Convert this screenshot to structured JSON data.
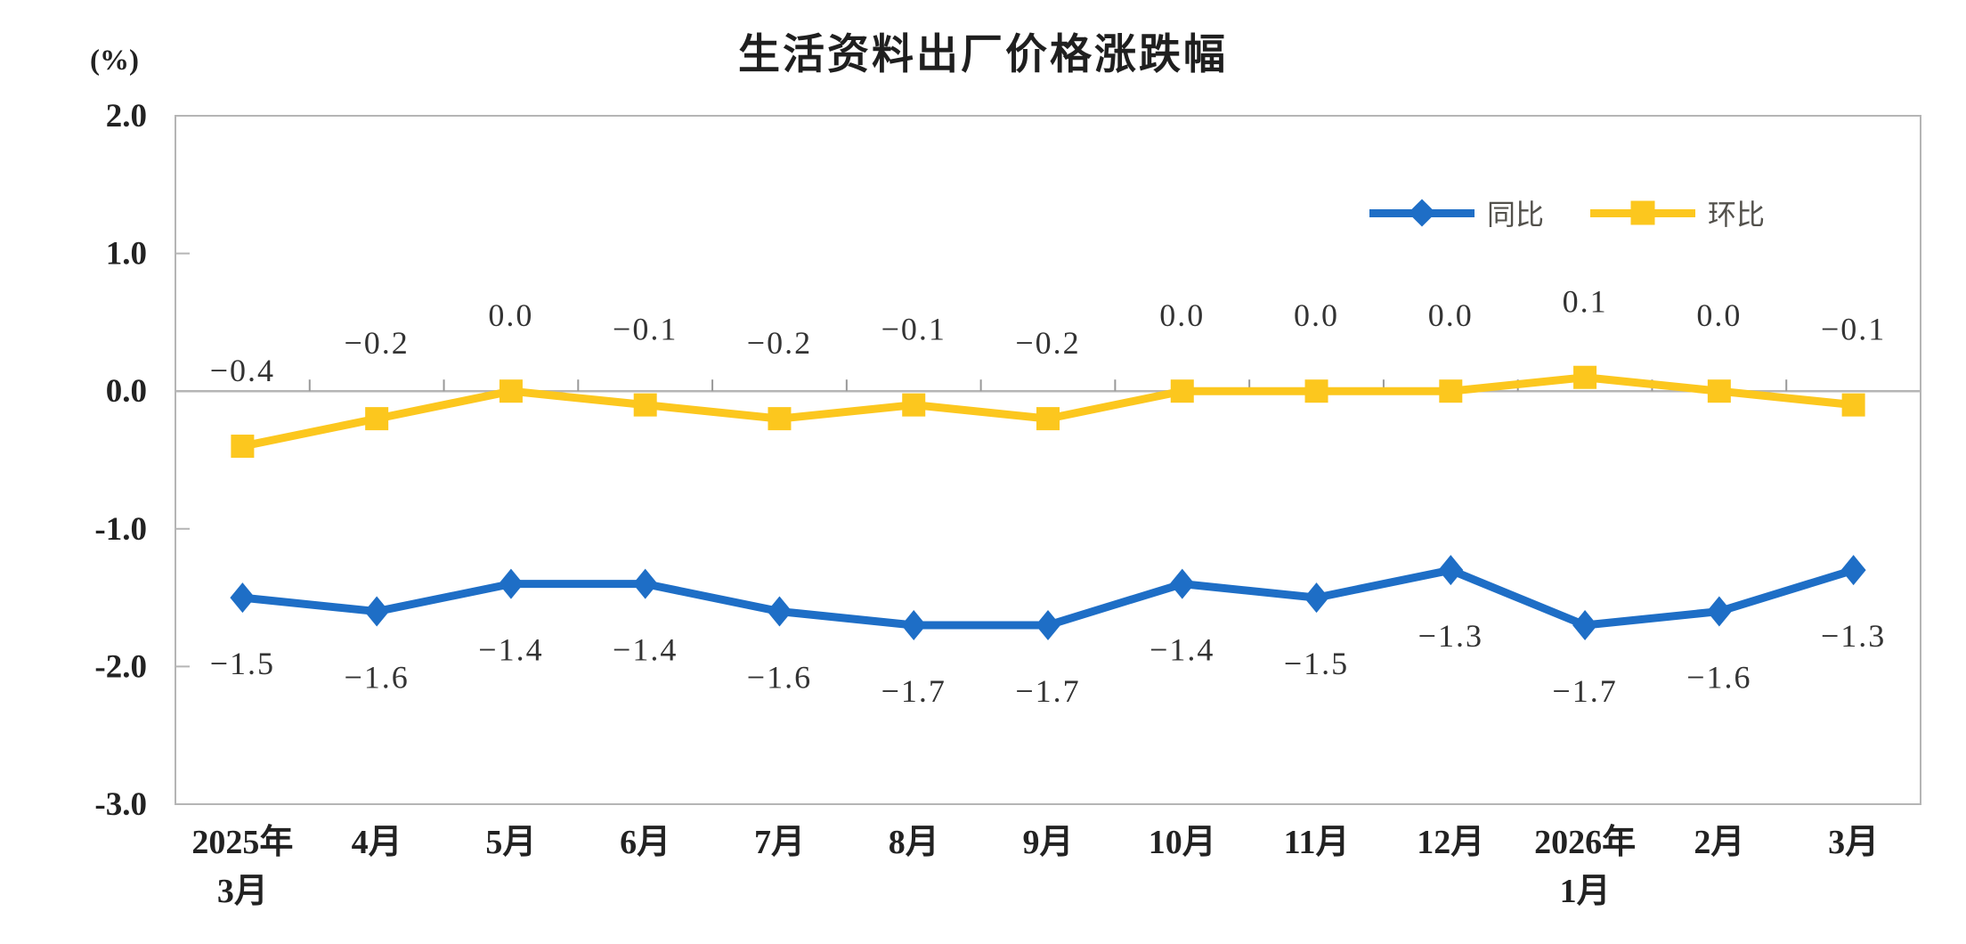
{
  "header": {
    "title": "生活资料出厂价格涨跌幅",
    "unit_label": "(%)"
  },
  "legend": {
    "position": "top-right",
    "items": [
      {
        "name": "同比",
        "color": "#1e6ec6",
        "marker": "diamond"
      },
      {
        "name": "环比",
        "color": "#fcc71e",
        "marker": "square"
      }
    ]
  },
  "chart_data": {
    "type": "line",
    "title": "生活资料出厂价格涨跌幅",
    "ylabel": "(%)",
    "ylim": [
      -3.0,
      2.0
    ],
    "yticks": [
      2.0,
      1.0,
      0.0,
      -1.0,
      -2.0,
      -3.0
    ],
    "inner_ytick_values": [
      1.0,
      -1.0,
      -2.0
    ],
    "grid": "zero-line-only",
    "legend_position": "top-right",
    "categories": [
      "2025年\n3月",
      "4月",
      "5月",
      "6月",
      "7月",
      "8月",
      "9月",
      "10月",
      "11月",
      "12月",
      "2026年\n1月",
      "2月",
      "3月"
    ],
    "series": [
      {
        "name": "同比",
        "marker": "diamond",
        "color": "#1e6ec6",
        "label_position": "below",
        "values": [
          -1.5,
          -1.6,
          -1.4,
          -1.4,
          -1.6,
          -1.7,
          -1.7,
          -1.4,
          -1.5,
          -1.3,
          -1.7,
          -1.6,
          -1.3
        ]
      },
      {
        "name": "环比",
        "marker": "square",
        "color": "#fcc71e",
        "label_position": "above",
        "values": [
          -0.4,
          -0.2,
          0.0,
          -0.1,
          -0.2,
          -0.1,
          -0.2,
          0.0,
          0.0,
          0.0,
          0.1,
          0.0,
          -0.1
        ]
      }
    ],
    "colors": {
      "axis": "#b5b5b5",
      "tick": "#999999",
      "data_label": "#333333",
      "axis_text": "#222222"
    }
  }
}
